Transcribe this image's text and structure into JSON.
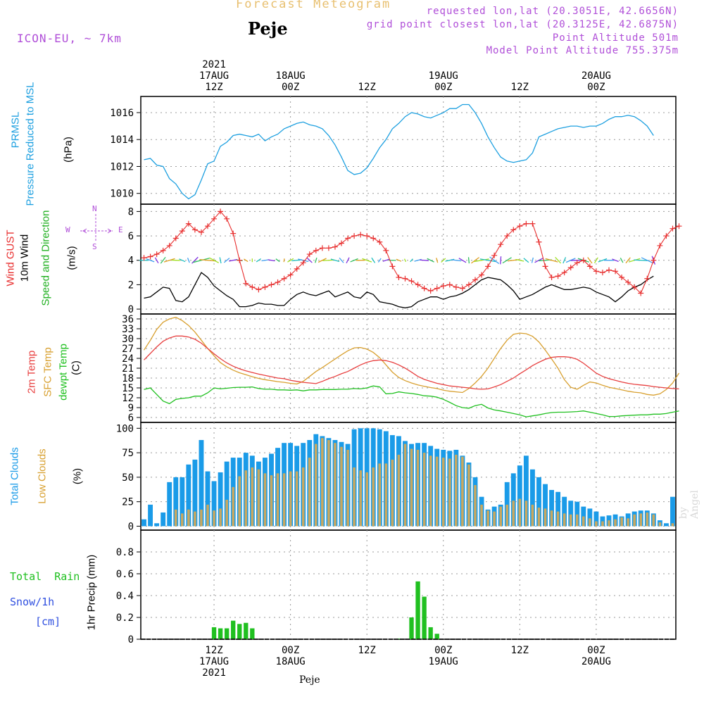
{
  "header": {
    "title": "Forecast Meteogram",
    "location": "Peje",
    "model": "ICON-EU, ~ 7km",
    "requested": "requested lon,lat (20.3051E, 42.6656N)",
    "gridpoint": "grid point closest lon,lat (20.3125E, 42.6875N)",
    "point_altitude": "Point Altitude 501m",
    "model_altitude": "Model Point Altitude 755.375m"
  },
  "footer": {
    "location": "Peje",
    "credit": "by Angel"
  },
  "time_axis": {
    "top_labels": [
      {
        "x": 11.5,
        "lines": [
          "2021",
          "17AUG",
          "12Z"
        ]
      },
      {
        "x": 23.5,
        "lines": [
          "18AUG",
          "00Z"
        ]
      },
      {
        "x": 35.5,
        "lines": [
          "12Z"
        ]
      },
      {
        "x": 47.5,
        "lines": [
          "19AUG",
          "00Z"
        ]
      },
      {
        "x": 59.5,
        "lines": [
          "12Z"
        ]
      },
      {
        "x": 71.5,
        "lines": [
          "20AUG",
          "00Z"
        ]
      }
    ],
    "bottom_labels": [
      {
        "x": 11.5,
        "lines": [
          "12Z",
          "17AUG",
          "2021"
        ]
      },
      {
        "x": 23.5,
        "lines": [
          "00Z",
          "18AUG"
        ]
      },
      {
        "x": 35.5,
        "lines": [
          "12Z"
        ]
      },
      {
        "x": 47.5,
        "lines": [
          "00Z",
          "19AUG"
        ]
      },
      {
        "x": 59.5,
        "lines": [
          "12Z"
        ]
      },
      {
        "x": 71.5,
        "lines": [
          "00Z",
          "20AUG"
        ]
      }
    ]
  },
  "labels": {
    "pressure": [
      "PRMSL",
      "Pressure Reduced to MSL",
      "(hPa)"
    ],
    "wind": [
      "Wind GUST",
      "10m Wind",
      "Speed and Direction",
      "(m/s)"
    ],
    "compass": {
      "n": "N",
      "s": "S",
      "w": "W",
      "e": "E"
    },
    "temp": [
      "2m Temp",
      "SFC Temp",
      "dewpt Temp",
      "(C)"
    ],
    "clouds": [
      "Total Clouds",
      "Low Clouds",
      "(%)"
    ],
    "precip_side": [
      "Total  Rain",
      "Snow/1h",
      "[cm]"
    ],
    "precip_axis": "1hr Precip (mm)"
  },
  "colors": {
    "pressure": "#1ea0e0",
    "gust": "#e83030",
    "wind": "#000000",
    "wind_label": "#20b020",
    "temp2m": "#e84040",
    "sfc": "#d8a030",
    "dewpt": "#20c020",
    "total_clouds": "#1a9be8",
    "low_clouds": "#c8a860",
    "rain": "#20c020",
    "snow": "#3050e0",
    "compass": "#b04fd8"
  },
  "chart_data": [
    {
      "type": "line",
      "name": "PRMSL",
      "ylabel": "Pressure Reduced to MSL (hPa)",
      "ylim": [
        1009.2,
        1017.2
      ],
      "yticks": [
        1010,
        1012,
        1014,
        1016
      ],
      "series": [
        {
          "name": "PRMSL",
          "values": [
            1012.5,
            1012.6,
            1012.1,
            1012.0,
            1011.1,
            1010.7,
            1010.0,
            1009.6,
            1009.9,
            1011.0,
            1012.2,
            1012.4,
            1013.5,
            1013.8,
            1014.3,
            1014.4,
            1014.3,
            1014.2,
            1014.4,
            1013.9,
            1014.2,
            1014.4,
            1014.8,
            1015.0,
            1015.2,
            1015.3,
            1015.1,
            1015.0,
            1014.8,
            1014.3,
            1013.6,
            1012.7,
            1011.7,
            1011.4,
            1011.5,
            1011.9,
            1012.6,
            1013.4,
            1014.0,
            1014.8,
            1015.2,
            1015.7,
            1016.0,
            1015.9,
            1015.7,
            1015.6,
            1015.8,
            1016.0,
            1016.3,
            1016.3,
            1016.6,
            1016.6,
            1016.0,
            1015.2,
            1014.2,
            1013.4,
            1012.7,
            1012.4,
            1012.3,
            1012.4,
            1012.5,
            1013.0,
            1014.2,
            1014.4,
            1014.6,
            1014.8,
            1014.9,
            1015.0,
            1015.0,
            1014.9,
            1015.0,
            1015.0,
            1015.2,
            1015.5,
            1015.7,
            1015.7,
            1015.8,
            1015.7,
            1015.4,
            1015.0,
            1014.3
          ]
        }
      ]
    },
    {
      "type": "line",
      "name": "Wind",
      "ylabel": "(m/s)",
      "ylim": [
        -0.4,
        8.6
      ],
      "yticks": [
        0,
        2,
        4,
        6,
        8
      ],
      "series": [
        {
          "name": "Wind GUST",
          "values": [
            4.2,
            4.3,
            4.5,
            4.8,
            5.2,
            5.8,
            6.4,
            7.0,
            6.5,
            6.3,
            6.8,
            7.4,
            8.0,
            7.4,
            6.2,
            4.0,
            2.1,
            1.8,
            1.6,
            1.8,
            2.0,
            2.2,
            2.5,
            2.8,
            3.3,
            3.8,
            4.5,
            4.8,
            5.0,
            5.0,
            5.1,
            5.4,
            5.8,
            6.0,
            6.1,
            6.0,
            5.8,
            5.5,
            4.8,
            3.5,
            2.6,
            2.5,
            2.3,
            2.0,
            1.7,
            1.5,
            1.7,
            1.9,
            2.0,
            1.8,
            1.7,
            2.0,
            2.4,
            2.8,
            3.5,
            4.4,
            5.3,
            6.0,
            6.5,
            6.8,
            7.0,
            7.0,
            5.5,
            3.5,
            2.6,
            2.7,
            3.0,
            3.4,
            3.8,
            4.0,
            3.5,
            3.1,
            3.0,
            3.2,
            3.1,
            2.6,
            2.2,
            1.8,
            1.3,
            2.5,
            4.0,
            5.2,
            6.0,
            6.6,
            6.8
          ]
        },
        {
          "name": "10m Wind",
          "values": [
            0.9,
            1.0,
            1.4,
            1.8,
            1.7,
            0.7,
            0.6,
            1.0,
            2.0,
            3.0,
            2.6,
            1.9,
            1.5,
            1.1,
            0.8,
            0.2,
            0.2,
            0.3,
            0.5,
            0.4,
            0.4,
            0.3,
            0.3,
            0.8,
            1.2,
            1.4,
            1.2,
            1.1,
            1.3,
            1.5,
            1.0,
            1.2,
            1.4,
            1.0,
            0.9,
            1.4,
            1.2,
            0.6,
            0.5,
            0.4,
            0.2,
            0.1,
            0.2,
            0.6,
            0.8,
            1.0,
            1.0,
            0.8,
            1.0,
            1.1,
            1.3,
            1.6,
            2.0,
            2.4,
            2.6,
            2.5,
            2.4,
            2.0,
            1.5,
            0.8,
            1.0,
            1.2,
            1.5,
            1.8,
            2.0,
            1.8,
            1.6,
            1.6,
            1.7,
            1.8,
            1.7,
            1.4,
            1.2,
            1.0,
            0.6,
            1.0,
            1.5,
            1.8,
            2.0,
            2.4,
            2.7
          ]
        }
      ],
      "wind_direction": "arrows drawn at y=4 m/s, multicolored by speed"
    },
    {
      "type": "line",
      "name": "Temperature",
      "ylabel": "(C)",
      "ylim": [
        4.5,
        37.5
      ],
      "yticks": [
        6,
        9,
        12,
        15,
        18,
        21,
        24,
        27,
        30,
        33,
        36
      ],
      "series": [
        {
          "name": "2m Temp",
          "values": [
            23.5,
            25.5,
            27.5,
            29.2,
            30.2,
            30.8,
            30.8,
            30.5,
            29.8,
            28.6,
            27.0,
            25.4,
            23.9,
            22.6,
            21.6,
            20.8,
            20.2,
            19.7,
            19.2,
            18.8,
            18.4,
            18.0,
            17.8,
            17.3,
            17.0,
            16.7,
            16.5,
            16.3,
            17.0,
            17.8,
            18.5,
            19.3,
            20.0,
            21.0,
            22.0,
            22.8,
            23.3,
            23.5,
            23.3,
            22.8,
            22.0,
            21.0,
            19.8,
            18.5,
            17.6,
            17.0,
            16.4,
            16.0,
            15.6,
            15.4,
            15.2,
            15.0,
            14.7,
            14.6,
            14.7,
            15.3,
            16.0,
            17.0,
            18.0,
            19.3,
            20.5,
            21.8,
            22.8,
            23.7,
            24.3,
            24.5,
            24.5,
            24.3,
            23.7,
            22.5,
            21.0,
            19.5,
            18.5,
            17.8,
            17.3,
            16.8,
            16.4,
            16.1,
            15.9,
            15.7,
            15.4,
            15.2,
            15.0,
            14.8,
            14.7
          ]
        },
        {
          "name": "SFC Temp",
          "values": [
            26.5,
            29.5,
            32.8,
            35.0,
            36.0,
            36.5,
            35.5,
            34.0,
            32.0,
            29.5,
            27.0,
            24.8,
            22.7,
            21.4,
            20.4,
            19.6,
            19.0,
            18.4,
            17.9,
            17.5,
            17.2,
            16.9,
            16.7,
            16.4,
            16.2,
            17.0,
            18.5,
            20.0,
            21.2,
            22.5,
            23.8,
            25.1,
            26.3,
            27.2,
            27.3,
            26.8,
            25.8,
            24.2,
            22.0,
            19.8,
            18.2,
            17.2,
            16.5,
            15.9,
            15.5,
            15.1,
            14.8,
            14.3,
            14.0,
            13.8,
            13.6,
            14.8,
            16.5,
            18.5,
            21.0,
            24.0,
            27.0,
            29.5,
            31.3,
            31.7,
            31.5,
            30.7,
            29.0,
            26.5,
            23.8,
            21.0,
            17.5,
            15.2,
            14.6,
            15.8,
            16.8,
            16.5,
            15.8,
            15.2,
            14.8,
            14.4,
            14.0,
            13.7,
            13.5,
            13.0,
            12.8,
            13.2,
            14.5,
            16.5,
            19.5
          ]
        },
        {
          "name": "dewpt Temp",
          "values": [
            14.5,
            15.0,
            13.0,
            11.0,
            10.2,
            11.5,
            11.8,
            12.0,
            12.5,
            12.5,
            13.5,
            15.0,
            14.7,
            14.9,
            15.1,
            15.2,
            15.2,
            15.3,
            14.8,
            14.6,
            14.6,
            14.4,
            14.4,
            14.3,
            14.4,
            14.1,
            14.4,
            14.4,
            14.5,
            14.5,
            14.5,
            14.6,
            14.6,
            14.8,
            14.7,
            15.0,
            15.6,
            15.3,
            13.2,
            13.3,
            13.8,
            13.5,
            13.3,
            13.0,
            12.6,
            12.5,
            12.2,
            11.5,
            10.6,
            9.6,
            9.0,
            8.8,
            9.6,
            10.0,
            8.9,
            8.3,
            8.0,
            7.6,
            7.2,
            6.8,
            6.2,
            6.5,
            6.8,
            7.2,
            7.5,
            7.6,
            7.6,
            7.7,
            7.8,
            8.0,
            7.6,
            7.2,
            6.8,
            6.3,
            6.3,
            6.5,
            6.6,
            6.7,
            6.8,
            6.8,
            7.0,
            7.0,
            7.2,
            7.6,
            8.0
          ]
        }
      ]
    },
    {
      "type": "bar",
      "name": "Clouds",
      "ylabel": "(%)",
      "ylim": [
        -4,
        106
      ],
      "yticks": [
        0,
        25,
        50,
        75,
        100
      ],
      "series": [
        {
          "name": "Total Clouds",
          "values": [
            7,
            22,
            3,
            14,
            45,
            50,
            50,
            63,
            68,
            88,
            56,
            46,
            55,
            66,
            70,
            70,
            75,
            72,
            66,
            70,
            74,
            80,
            85,
            85,
            82,
            85,
            88,
            94,
            92,
            90,
            88,
            86,
            84,
            99,
            100,
            100,
            100,
            99,
            97,
            93,
            92,
            87,
            84,
            85,
            85,
            82,
            79,
            78,
            77,
            78,
            72,
            65,
            50,
            30,
            17,
            20,
            22,
            45,
            54,
            62,
            72,
            58,
            50,
            43,
            37,
            35,
            30,
            26,
            25,
            20,
            18,
            15,
            10,
            11,
            12,
            10,
            13,
            15,
            16,
            16,
            13,
            6,
            3,
            30
          ]
        },
        {
          "name": "Low Clouds",
          "values": [
            0,
            0,
            0,
            0,
            0,
            17,
            13,
            17,
            15,
            17,
            22,
            16,
            18,
            27,
            40,
            51,
            57,
            60,
            58,
            54,
            52,
            54,
            54,
            56,
            56,
            60,
            70,
            84,
            90,
            88,
            85,
            81,
            78,
            60,
            57,
            55,
            60,
            64,
            64,
            68,
            73,
            84,
            79,
            78,
            75,
            72,
            71,
            70,
            69,
            73,
            71,
            63,
            42,
            22,
            16,
            15,
            20,
            22,
            26,
            28,
            26,
            22,
            19,
            18,
            16,
            15,
            13,
            12,
            12,
            10,
            8,
            5,
            5,
            6,
            7,
            9,
            8,
            12,
            13,
            14,
            12,
            4,
            0,
            3
          ]
        }
      ]
    },
    {
      "type": "bar",
      "name": "Precipitation",
      "ylabel": "1hr Precip (mm)",
      "ylim": [
        0,
        1.0
      ],
      "yticks": [
        0,
        0.2,
        0.4,
        0.6,
        0.8
      ],
      "series": [
        {
          "name": "Total Rain",
          "values": [
            {
              "x": 11,
              "v": 0.11
            },
            {
              "x": 12,
              "v": 0.1
            },
            {
              "x": 13,
              "v": 0.1
            },
            {
              "x": 14,
              "v": 0.17
            },
            {
              "x": 15,
              "v": 0.14
            },
            {
              "x": 16,
              "v": 0.15
            },
            {
              "x": 17,
              "v": 0.1
            },
            {
              "x": 40,
              "v": 0.005
            },
            {
              "x": 42,
              "v": 0.2
            },
            {
              "x": 43,
              "v": 0.53
            },
            {
              "x": 44,
              "v": 0.39
            },
            {
              "x": 45,
              "v": 0.11
            },
            {
              "x": 46,
              "v": 0.05
            }
          ]
        }
      ]
    }
  ]
}
